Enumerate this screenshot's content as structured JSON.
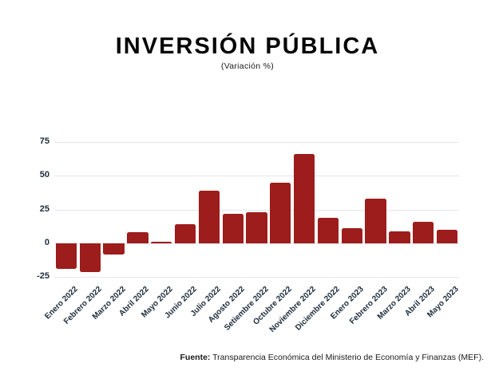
{
  "header": {
    "title": "INVERSIÓN PÚBLICA",
    "subtitle": "(Variación %)"
  },
  "footer": {
    "label": "Fuente:",
    "text": "Transparencia Económica del Ministerio de Economía y Finanzas (MEF)."
  },
  "colors": {
    "bar": "#9D1C1C",
    "axis_label": "#1C2B3A",
    "gridline": "#E3E6EA",
    "title": "#050505"
  },
  "chart_data": {
    "type": "bar",
    "title": "INVERSIÓN PÚBLICA",
    "subtitle": "(Variación %)",
    "xlabel": "",
    "ylabel": "",
    "categories": [
      "Enero 2022",
      "Febrero 2022",
      "Marzo 2022",
      "Abril 2022",
      "Mayo 2022",
      "Junio 2022",
      "Julio 2022",
      "Agosto 2022",
      "Setiembre 2022",
      "Octubre 2022",
      "Noviembre 2022",
      "Diciembre 2022",
      "Enero 2023",
      "Febrero 2023",
      "Marzo 2023",
      "Abril 2023",
      "Mayo 2023"
    ],
    "values": [
      -19,
      -21,
      -8,
      8,
      1,
      14,
      39,
      22,
      23,
      45,
      66,
      19,
      11,
      33,
      9,
      16,
      10
    ],
    "yticks": [
      75,
      50,
      25,
      0,
      -25
    ],
    "ylim": [
      -25,
      80
    ],
    "grid": true,
    "legend": false,
    "bar_color": "#9D1C1C"
  }
}
